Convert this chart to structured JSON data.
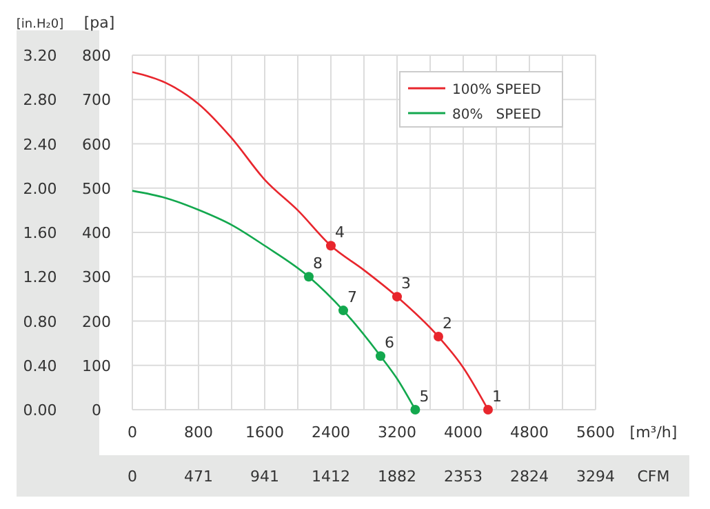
{
  "chart_data": {
    "type": "line",
    "xlabel": "[m³/h]",
    "ylabel": "[pa]",
    "y2label": "[in.H₂0]",
    "x2label": "CFM",
    "xlim": [
      0,
      5600
    ],
    "xticks": [
      0,
      800,
      1600,
      2400,
      3200,
      4000,
      4800,
      5600
    ],
    "ylim": [
      0,
      800
    ],
    "yticks": [
      0,
      100,
      200,
      300,
      400,
      500,
      600,
      700,
      800
    ],
    "y2lim": [
      0,
      3.2
    ],
    "y2ticks": [
      {
        "value": 0,
        "label": "0.00"
      },
      {
        "value": 0.4,
        "label": "0.40"
      },
      {
        "value": 0.8,
        "label": "0.80"
      },
      {
        "value": 1.2,
        "label": "1.20"
      },
      {
        "value": 1.6,
        "label": "1.60"
      },
      {
        "value": 2,
        "label": "2.00"
      },
      {
        "value": 2.4,
        "label": "2.40"
      },
      {
        "value": 2.8,
        "label": "2.80"
      },
      {
        "value": 3.2,
        "label": "3.20"
      }
    ],
    "x2lim": [
      0,
      3294
    ],
    "x2ticks": [
      0,
      471,
      941,
      1412,
      1882,
      2353,
      2824,
      3294
    ],
    "grid": true,
    "legend": "top right",
    "marker": "none",
    "line_style": "solid",
    "series": [
      {
        "name": "100% SPEED",
        "color": "#e8262d",
        "x": [
          0,
          400,
          800,
          1200,
          1600,
          2000,
          2400,
          2800,
          3200,
          3700,
          4000,
          4300
        ],
        "values": [
          762,
          738,
          690,
          613,
          519,
          450,
          370,
          315,
          255,
          165,
          95,
          0
        ]
      },
      {
        "name": "80%   SPEED",
        "color": "#13a84e",
        "x": [
          0,
          400,
          800,
          1200,
          1600,
          2133,
          2550,
          3000,
          3200,
          3420
        ],
        "values": [
          494,
          478,
          451,
          417,
          370,
          300,
          224,
          121,
          70,
          0
        ]
      },
      {
        "type": "scatter",
        "marker": "circle",
        "color": "#e8262d",
        "x": [
          4300,
          3700,
          3200,
          2400
        ],
        "values": [
          0,
          165,
          255,
          370
        ]
      },
      {
        "type": "scatter",
        "marker": "circle",
        "color": "#13a84e",
        "x": [
          3420,
          3000,
          2550,
          2133
        ],
        "values": [
          0,
          121,
          224,
          300
        ]
      }
    ],
    "annotations": [
      {
        "text": "1",
        "x": 4300,
        "y": 0
      },
      {
        "text": "2",
        "x": 3700,
        "y": 165
      },
      {
        "text": "3",
        "x": 3200,
        "y": 255
      },
      {
        "text": "4",
        "x": 2400,
        "y": 370
      },
      {
        "text": "5",
        "x": 3420,
        "y": 0
      },
      {
        "text": "6",
        "x": 3000,
        "y": 121
      },
      {
        "text": "7",
        "x": 2550,
        "y": 224
      },
      {
        "text": "8",
        "x": 2133,
        "y": 300
      }
    ]
  }
}
